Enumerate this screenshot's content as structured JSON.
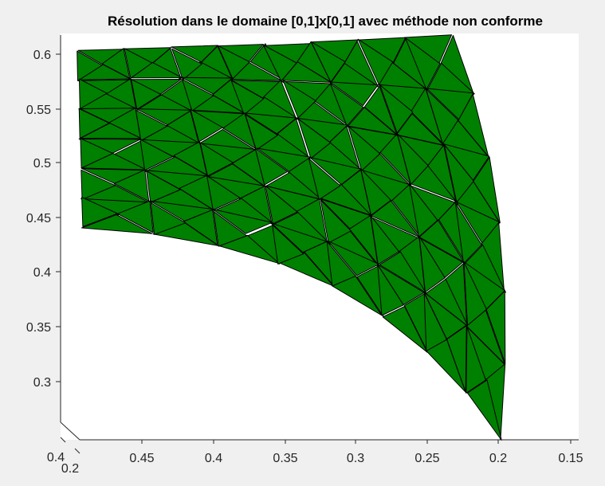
{
  "chart_data": {
    "type": "surface-mesh",
    "title": "Résolution dans le domaine [0,1]x[0,1] avec méthode non conforme",
    "face_color": "#008000",
    "edge_color": "#000000",
    "background": "#f0f0f0",
    "axes_background": "#ffffff",
    "x_ticks": [
      "0.45",
      "0.4",
      "0.35",
      "0.3",
      "0.25",
      "0.2",
      "0.15"
    ],
    "x_ticks_values": [
      0.45,
      0.4,
      0.35,
      0.3,
      0.25,
      0.2,
      0.15
    ],
    "y_ticks": [
      "0.2",
      "0.4"
    ],
    "y_ticks_values": [
      0.2,
      0.4
    ],
    "z_ticks": [
      "0.6",
      "0.55",
      "0.5",
      "0.45",
      "0.4",
      "0.35",
      "0.3"
    ],
    "z_ticks_values": [
      0.6,
      0.55,
      0.5,
      0.45,
      0.4,
      0.35,
      0.3
    ],
    "xlim": [
      0.475,
      0.14
    ],
    "zlim": [
      0.265,
      0.615
    ],
    "grid": false,
    "legend": "none"
  }
}
